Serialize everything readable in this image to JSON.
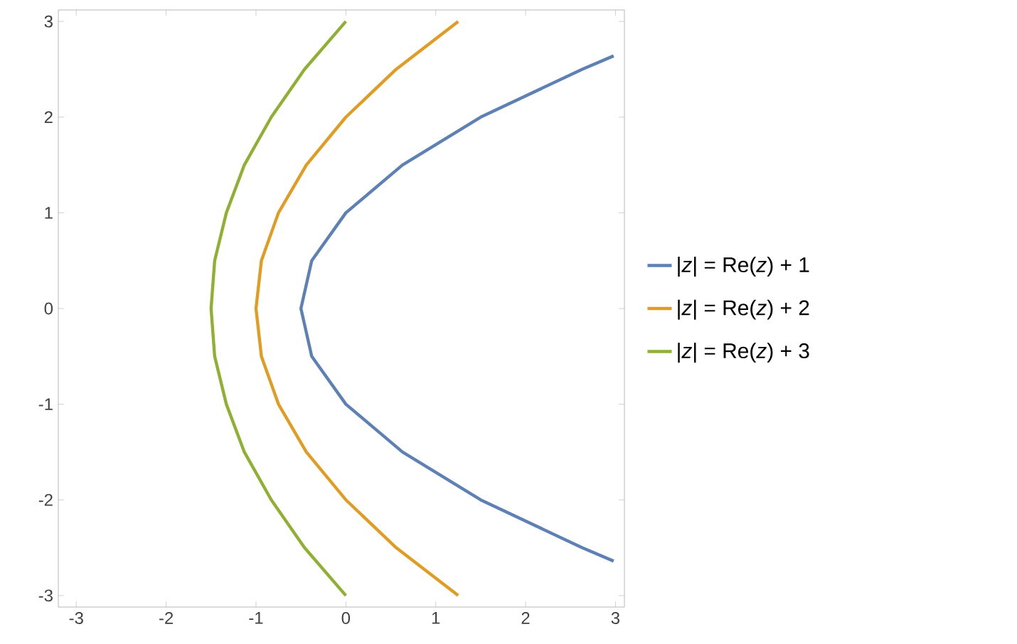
{
  "chart_data": {
    "type": "line",
    "xlim": [
      -3.2,
      3.1
    ],
    "ylim": [
      -3.12,
      3.12
    ],
    "xticks": [
      -3,
      -2,
      -1,
      0,
      1,
      2,
      3
    ],
    "yticks": [
      -3,
      -2,
      -1,
      0,
      1,
      2,
      3
    ],
    "grid": false,
    "legend": "right",
    "marker": "none",
    "line_style": "solid",
    "series": [
      {
        "name": "|*z*| = Re(*z*) + 1",
        "color": "#5e81b5",
        "x": [
          2.98,
          2.63,
          1.5,
          0.63,
          0,
          -0.38,
          -0.5,
          -0.38,
          0,
          0.63,
          1.5,
          2.63,
          2.98
        ],
        "values": [
          -2.64,
          -2.5,
          -2,
          -1.5,
          -1,
          -0.5,
          0,
          0.5,
          1,
          1.5,
          2,
          2.5,
          2.64
        ]
      },
      {
        "name": "|*z*| = Re(*z*) + 2",
        "color": "#e19c24",
        "x": [
          1.25,
          0.56,
          0,
          -0.44,
          -0.75,
          -0.94,
          -1,
          -0.94,
          -0.75,
          -0.44,
          0,
          0.56,
          1.25
        ],
        "values": [
          -3,
          -2.5,
          -2,
          -1.5,
          -1,
          -0.5,
          0,
          0.5,
          1,
          1.5,
          2,
          2.5,
          3
        ]
      },
      {
        "name": "|*z*| = Re(*z*) + 3",
        "color": "#8fb032",
        "x": [
          0,
          -0.46,
          -0.83,
          -1.13,
          -1.33,
          -1.46,
          -1.5,
          -1.46,
          -1.33,
          -1.13,
          -0.83,
          -0.46,
          0
        ],
        "values": [
          -3,
          -2.5,
          -2,
          -1.5,
          -1,
          -0.5,
          0,
          0.5,
          1,
          1.5,
          2,
          2.5,
          3
        ]
      }
    ]
  }
}
